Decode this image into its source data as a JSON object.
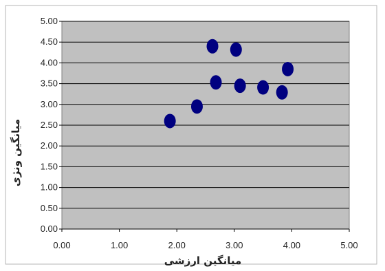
{
  "chart_data": {
    "type": "scatter",
    "title": "",
    "xlabel": "میانگین ارزشی",
    "ylabel": "میانگین ونژی",
    "xlim": [
      0,
      5
    ],
    "ylim": [
      0,
      5
    ],
    "grid": true,
    "x_ticks": [
      "0.00",
      "1.00",
      "2.00",
      "3.00",
      "4.00",
      "5.00"
    ],
    "y_ticks": [
      "0.00",
      "0.50",
      "1.00",
      "1.50",
      "2.00",
      "2.50",
      "3.00",
      "3.50",
      "4.00",
      "4.50",
      "5.00"
    ],
    "points": [
      {
        "x": 1.88,
        "y": 2.6
      },
      {
        "x": 2.35,
        "y": 2.95
      },
      {
        "x": 2.62,
        "y": 4.4
      },
      {
        "x": 2.68,
        "y": 3.53
      },
      {
        "x": 3.03,
        "y": 4.32
      },
      {
        "x": 3.1,
        "y": 3.45
      },
      {
        "x": 3.5,
        "y": 3.41
      },
      {
        "x": 3.83,
        "y": 3.29
      },
      {
        "x": 3.93,
        "y": 3.85
      }
    ],
    "colors": {
      "plot_background": "#c0c0c0",
      "marker": "#000080",
      "grid": "#000000"
    }
  }
}
